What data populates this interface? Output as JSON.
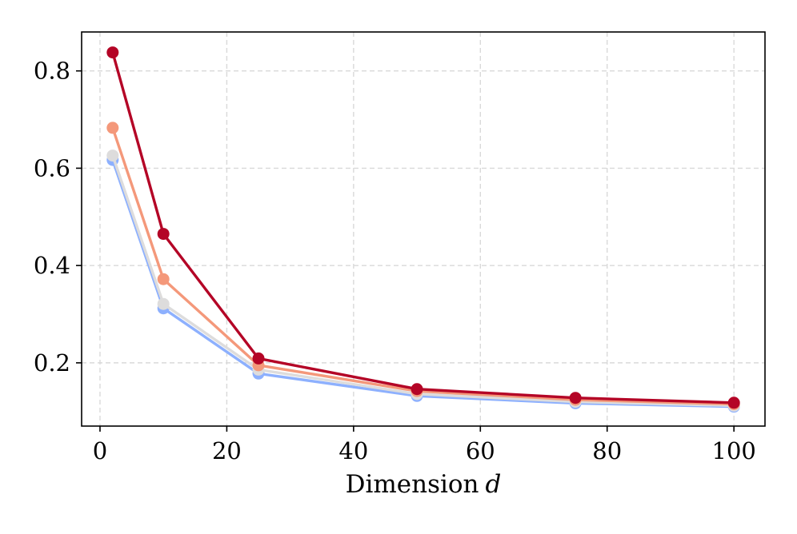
{
  "chart_data": {
    "type": "line",
    "title": "",
    "xlabel": "Dimension",
    "xlabel_var": "d",
    "ylabel": "",
    "x": [
      2,
      10,
      25,
      50,
      75,
      100
    ],
    "xlim": [
      -2.9,
      104.9
    ],
    "ylim": [
      0.07,
      0.88
    ],
    "xticks": [
      0,
      20,
      40,
      60,
      80,
      100
    ],
    "xtick_labels": [
      "0",
      "20",
      "40",
      "60",
      "80",
      "100"
    ],
    "yticks": [
      0.2,
      0.4,
      0.6,
      0.8
    ],
    "ytick_labels": [
      "0.2",
      "0.4",
      "0.6",
      "0.8"
    ],
    "grid": true,
    "legend": false,
    "series": [
      {
        "color": "#8db0fe",
        "values": [
          0.617,
          0.312,
          0.178,
          0.132,
          0.117,
          0.11
        ]
      },
      {
        "color": "#dddcdc",
        "values": [
          0.626,
          0.321,
          0.186,
          0.136,
          0.12,
          0.112
        ]
      },
      {
        "color": "#f4987a",
        "values": [
          0.683,
          0.372,
          0.195,
          0.142,
          0.124,
          0.115
        ]
      },
      {
        "color": "#b40426",
        "values": [
          0.838,
          0.465,
          0.209,
          0.146,
          0.128,
          0.118
        ]
      }
    ]
  }
}
